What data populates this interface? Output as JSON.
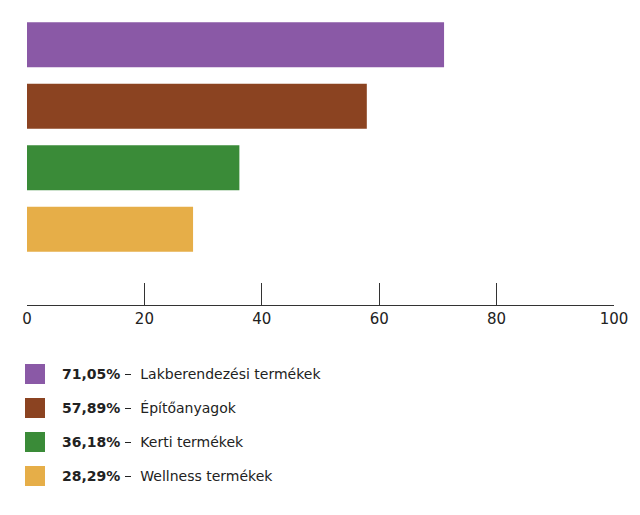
{
  "chart_data": {
    "type": "bar",
    "orientation": "horizontal",
    "categories": [
      "Lakberendezési termékek",
      "Építőanyagok",
      "Kerti termékek",
      "Wellness termékek"
    ],
    "values": [
      71.05,
      57.89,
      36.18,
      28.29
    ],
    "value_labels": [
      "71,05%",
      "57,89%",
      "36,18%",
      "28,29%"
    ],
    "colors": [
      "#8a59a6",
      "#8b4321",
      "#3a8b38",
      "#e6ae48"
    ],
    "xlim": [
      0,
      100
    ],
    "xticks": [
      0,
      20,
      40,
      60,
      80,
      100
    ],
    "grid": false,
    "tick_labels": "x"
  }
}
